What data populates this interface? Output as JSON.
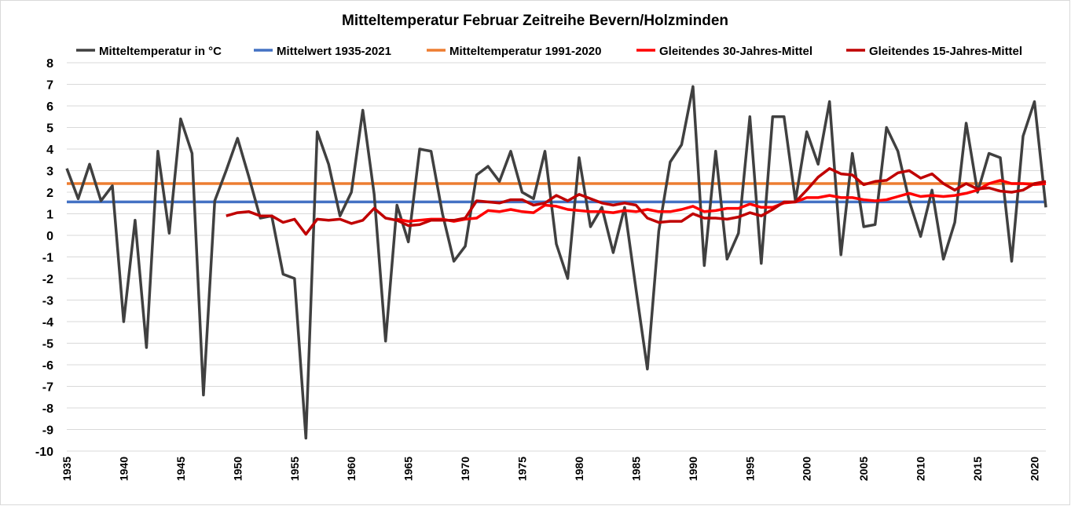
{
  "chart_data": {
    "type": "line",
    "title": "Mitteltemperatur Februar Zeitreihe Bevern/Holzminden",
    "xlabel": "",
    "ylabel": "",
    "xlim": [
      1935,
      2021
    ],
    "ylim": [
      -10,
      8
    ],
    "y_ticks": [
      "8",
      "7",
      "6",
      "5",
      "4",
      "3",
      "2",
      "1",
      "0",
      "-1",
      "-2",
      "-3",
      "-4",
      "-5",
      "-6",
      "-7",
      "-8",
      "-9",
      "-10"
    ],
    "x_ticks": [
      "1935",
      "1940",
      "1945",
      "1950",
      "1955",
      "1960",
      "1965",
      "1970",
      "1975",
      "1980",
      "1985",
      "1990",
      "1995",
      "2000",
      "2005",
      "2010",
      "2015",
      "2020"
    ],
    "grid": true,
    "legend_position": "top",
    "series": [
      {
        "name": "Mitteltemperatur in °C",
        "color": "#404040",
        "start": 1935,
        "values": [
          3.1,
          1.7,
          3.3,
          1.6,
          2.3,
          -4.0,
          0.7,
          -5.2,
          3.9,
          0.1,
          5.4,
          3.8,
          -7.4,
          1.6,
          3.0,
          4.5,
          2.7,
          0.8,
          0.9,
          -1.8,
          -2.0,
          -9.4,
          4.8,
          3.3,
          0.9,
          2.0,
          5.8,
          1.9,
          -4.9,
          1.4,
          -0.3,
          4.0,
          3.9,
          1.0,
          -1.2,
          -0.5,
          2.8,
          3.2,
          2.5,
          3.9,
          2.0,
          1.7,
          3.9,
          -0.4,
          -2.0,
          3.6,
          0.4,
          1.3,
          -0.8,
          1.3,
          -2.5,
          -6.2,
          0.2,
          3.4,
          4.2,
          6.9,
          -1.4,
          3.9,
          -1.1,
          0.1,
          5.5,
          -1.3,
          5.5,
          5.5,
          1.6,
          4.8,
          3.3,
          6.2,
          -0.9,
          3.8,
          0.4,
          0.5,
          5.0,
          3.9,
          1.6,
          -0.05,
          2.1,
          -1.1,
          0.6,
          5.2,
          2.0,
          3.8,
          3.6,
          -1.2,
          4.6,
          6.2,
          1.3
        ]
      },
      {
        "name": "Mittelwert 1935-2021",
        "color": "#4472C4",
        "start": 1935,
        "end": 2021,
        "constant": 1.55
      },
      {
        "name": "Mitteltemperatur 1991-2020",
        "color": "#ED7D31",
        "start": 1935,
        "end": 2021,
        "constant": 2.4
      },
      {
        "name": "Gleitendes 30-Jahres-Mittel",
        "color": "#FF0000",
        "start": 1964,
        "values": [
          0.75,
          0.65,
          0.7,
          0.75,
          0.75,
          0.65,
          0.75,
          0.8,
          1.15,
          1.1,
          1.2,
          1.1,
          1.05,
          1.4,
          1.35,
          1.2,
          1.15,
          1.1,
          1.1,
          1.05,
          1.15,
          1.1,
          1.2,
          1.1,
          1.1,
          1.2,
          1.35,
          1.1,
          1.15,
          1.25,
          1.25,
          1.45,
          1.3,
          1.3,
          1.5,
          1.55,
          1.75,
          1.75,
          1.85,
          1.75,
          1.75,
          1.65,
          1.6,
          1.65,
          1.8,
          1.95,
          1.8,
          1.85,
          1.8,
          1.85,
          1.95,
          2.1,
          2.4,
          2.55,
          2.4,
          2.4,
          2.35,
          2.4
        ]
      },
      {
        "name": "Gleitendes 15-Jahres-Mittel",
        "color": "#C00000",
        "start": 1949,
        "values": [
          0.9,
          1.05,
          1.1,
          0.9,
          0.9,
          0.6,
          0.75,
          0.05,
          0.75,
          0.7,
          0.75,
          0.55,
          0.7,
          1.25,
          0.8,
          0.7,
          0.45,
          0.5,
          0.7,
          0.7,
          0.7,
          0.8,
          1.6,
          1.55,
          1.5,
          1.65,
          1.65,
          1.4,
          1.5,
          1.85,
          1.6,
          1.9,
          1.7,
          1.5,
          1.4,
          1.5,
          1.4,
          0.8,
          0.6,
          0.65,
          0.65,
          1.0,
          0.8,
          0.8,
          0.75,
          0.85,
          1.05,
          0.9,
          1.2,
          1.55,
          1.55,
          2.1,
          2.7,
          3.1,
          2.85,
          2.8,
          2.35,
          2.5,
          2.55,
          2.9,
          3.0,
          2.65,
          2.85,
          2.4,
          2.1,
          2.4,
          2.15,
          2.2,
          2.05,
          2.0,
          2.1,
          2.4,
          2.5
        ]
      }
    ]
  }
}
